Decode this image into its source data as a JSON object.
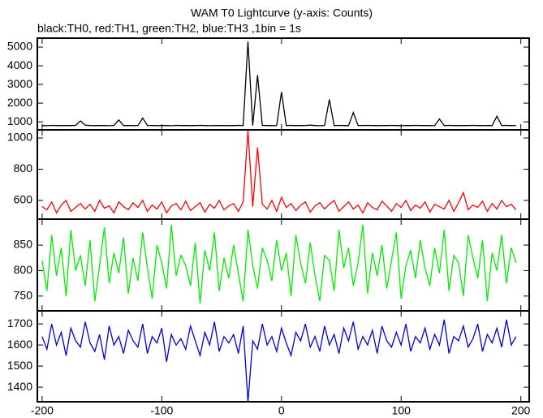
{
  "chart_data": [
    {
      "type": "line",
      "title": "WAM T0 Lightcurve (y-axis: Counts)",
      "subtitle": "black:TH0, red:TH1, green:TH2, blue:TH3 ,1bin = 1s",
      "color": "#000000",
      "xlim": [
        -204,
        207
      ],
      "ylim": [
        570,
        5480
      ],
      "yticks": [
        1000,
        2000,
        3000,
        4000,
        5000
      ],
      "x": [
        -200,
        -196,
        -192,
        -188,
        -184,
        -180,
        -176,
        -172,
        -168,
        -164,
        -160,
        -156,
        -152,
        -148,
        -144,
        -140,
        -136,
        -132,
        -128,
        -124,
        -120,
        -116,
        -112,
        -108,
        -104,
        -100,
        -96,
        -92,
        -88,
        -84,
        -80,
        -76,
        -72,
        -68,
        -64,
        -60,
        -56,
        -52,
        -48,
        -44,
        -40,
        -36,
        -32,
        -28,
        -24,
        -20,
        -16,
        -12,
        -8,
        -4,
        0,
        4,
        8,
        12,
        16,
        20,
        24,
        28,
        32,
        36,
        40,
        44,
        48,
        52,
        56,
        60,
        64,
        68,
        72,
        76,
        80,
        84,
        88,
        92,
        96,
        100,
        104,
        108,
        112,
        116,
        120,
        124,
        128,
        132,
        136,
        140,
        144,
        148,
        152,
        156,
        160,
        164,
        168,
        172,
        176,
        180,
        184,
        188,
        192,
        196
      ],
      "values": [
        800,
        790,
        810,
        800,
        795,
        805,
        800,
        810,
        1050,
        820,
        800,
        795,
        805,
        800,
        790,
        810,
        1100,
        800,
        805,
        795,
        800,
        1200,
        810,
        800,
        795,
        805,
        800,
        790,
        810,
        800,
        805,
        795,
        800,
        810,
        800,
        790,
        800,
        805,
        800,
        795,
        800,
        810,
        800,
        5300,
        800,
        3500,
        810,
        800,
        795,
        805,
        2600,
        800,
        810,
        795,
        800,
        805,
        820,
        800,
        790,
        805,
        2200,
        800,
        810,
        800,
        795,
        1500,
        800,
        805,
        810,
        800,
        795,
        805,
        800,
        810,
        800,
        790,
        805,
        800,
        810,
        800,
        800,
        795,
        805,
        1150,
        800,
        810,
        800,
        795,
        805,
        800,
        810,
        800,
        795,
        805,
        800,
        1300,
        800,
        810,
        795,
        805
      ]
    },
    {
      "type": "line",
      "color": "#ff0000",
      "xlim": [
        -204,
        207
      ],
      "ylim": [
        480,
        1052
      ],
      "yticks": [
        600,
        800,
        1000
      ],
      "x": [
        -200,
        -196,
        -192,
        -188,
        -184,
        -180,
        -176,
        -172,
        -168,
        -164,
        -160,
        -156,
        -152,
        -148,
        -144,
        -140,
        -136,
        -132,
        -128,
        -124,
        -120,
        -116,
        -112,
        -108,
        -104,
        -100,
        -96,
        -92,
        -88,
        -84,
        -80,
        -76,
        -72,
        -68,
        -64,
        -60,
        -56,
        -52,
        -48,
        -44,
        -40,
        -36,
        -32,
        -28,
        -24,
        -20,
        -16,
        -12,
        -8,
        -4,
        0,
        4,
        8,
        12,
        16,
        20,
        24,
        28,
        32,
        36,
        40,
        44,
        48,
        52,
        56,
        60,
        64,
        68,
        72,
        76,
        80,
        84,
        88,
        92,
        96,
        100,
        104,
        108,
        112,
        116,
        120,
        124,
        128,
        132,
        136,
        140,
        144,
        148,
        152,
        156,
        160,
        164,
        168,
        172,
        176,
        180,
        184,
        188,
        192,
        196
      ],
      "values": [
        560,
        540,
        590,
        520,
        570,
        600,
        530,
        555,
        580,
        545,
        575,
        530,
        600,
        550,
        565,
        520,
        590,
        560,
        540,
        585,
        555,
        600,
        530,
        570,
        545,
        590,
        520,
        565,
        580,
        540,
        595,
        535,
        560,
        585,
        525,
        575,
        550,
        600,
        540,
        565,
        580,
        530,
        590,
        1050,
        560,
        940,
        575,
        545,
        600,
        530,
        620,
        555,
        580,
        535,
        570,
        590,
        525,
        565,
        585,
        545,
        575,
        600,
        530,
        560,
        590,
        545,
        570,
        520,
        585,
        555,
        540,
        595,
        565,
        530,
        580,
        555,
        600,
        535,
        570,
        550,
        590,
        525,
        575,
        560,
        545,
        600,
        530,
        585,
        650,
        540,
        570,
        555,
        595,
        530,
        580,
        545,
        600,
        560,
        575,
        540
      ]
    },
    {
      "type": "line",
      "color": "#00ee00",
      "xlim": [
        -204,
        207
      ],
      "ylim": [
        721,
        901
      ],
      "yticks": [
        750,
        800,
        850
      ],
      "x": [
        -200,
        -196,
        -192,
        -188,
        -184,
        -180,
        -176,
        -172,
        -168,
        -164,
        -160,
        -156,
        -152,
        -148,
        -144,
        -140,
        -136,
        -132,
        -128,
        -124,
        -120,
        -116,
        -112,
        -108,
        -104,
        -100,
        -96,
        -92,
        -88,
        -84,
        -80,
        -76,
        -72,
        -68,
        -64,
        -60,
        -56,
        -52,
        -48,
        -44,
        -40,
        -36,
        -32,
        -28,
        -24,
        -20,
        -16,
        -12,
        -8,
        -4,
        0,
        4,
        8,
        12,
        16,
        20,
        24,
        28,
        32,
        36,
        40,
        44,
        48,
        52,
        56,
        60,
        64,
        68,
        72,
        76,
        80,
        84,
        88,
        92,
        96,
        100,
        104,
        108,
        112,
        116,
        120,
        124,
        128,
        132,
        136,
        140,
        144,
        148,
        152,
        156,
        160,
        164,
        168,
        172,
        176,
        180,
        184,
        188,
        192,
        196
      ],
      "values": [
        820,
        760,
        870,
        790,
        845,
        750,
        880,
        800,
        830,
        770,
        860,
        740,
        810,
        885,
        775,
        835,
        795,
        865,
        755,
        825,
        780,
        875,
        805,
        745,
        850,
        815,
        765,
        890,
        790,
        830,
        810,
        770,
        855,
        735,
        840,
        800,
        875,
        760,
        825,
        785,
        850,
        795,
        740,
        880,
        810,
        765,
        845,
        820,
        780,
        860,
        800,
        835,
        750,
        870,
        815,
        775,
        855,
        790,
        740,
        830,
        820,
        760,
        880,
        805,
        845,
        770,
        815,
        890,
        755,
        835,
        790,
        850,
        765,
        820,
        875,
        745,
        810,
        840,
        785,
        860,
        805,
        770,
        845,
        795,
        880,
        760,
        830,
        815,
        750,
        870,
        825,
        785,
        860,
        740,
        835,
        800,
        870,
        775,
        845,
        815
      ]
    },
    {
      "type": "line",
      "color": "#0000dd",
      "xlim": [
        -204,
        207
      ],
      "ylim": [
        1331,
        1762
      ],
      "yticks": [
        1400,
        1500,
        1600,
        1700
      ],
      "xticks": [
        -200,
        -100,
        0,
        100,
        200
      ],
      "x": [
        -200,
        -196,
        -192,
        -188,
        -184,
        -180,
        -176,
        -172,
        -168,
        -164,
        -160,
        -156,
        -152,
        -148,
        -144,
        -140,
        -136,
        -132,
        -128,
        -124,
        -120,
        -116,
        -112,
        -108,
        -104,
        -100,
        -96,
        -92,
        -88,
        -84,
        -80,
        -76,
        -72,
        -68,
        -64,
        -60,
        -56,
        -52,
        -48,
        -44,
        -40,
        -36,
        -32,
        -28,
        -24,
        -20,
        -16,
        -12,
        -8,
        -4,
        0,
        4,
        8,
        12,
        16,
        20,
        24,
        28,
        32,
        36,
        40,
        44,
        48,
        52,
        56,
        60,
        64,
        68,
        72,
        76,
        80,
        84,
        88,
        92,
        96,
        100,
        104,
        108,
        112,
        116,
        120,
        124,
        128,
        132,
        136,
        140,
        144,
        148,
        152,
        156,
        160,
        164,
        168,
        172,
        176,
        180,
        184,
        188,
        192,
        196
      ],
      "values": [
        1640,
        1580,
        1700,
        1600,
        1660,
        1550,
        1680,
        1620,
        1590,
        1710,
        1610,
        1570,
        1650,
        1530,
        1690,
        1600,
        1640,
        1560,
        1670,
        1620,
        1590,
        1700,
        1560,
        1640,
        1610,
        1680,
        1520,
        1650,
        1600,
        1630,
        1580,
        1690,
        1620,
        1550,
        1660,
        1600,
        1710,
        1570,
        1640,
        1610,
        1650,
        1560,
        1690,
        1330,
        1620,
        1580,
        1700,
        1600,
        1640,
        1570,
        1680,
        1610,
        1550,
        1660,
        1620,
        1700,
        1590,
        1640,
        1570,
        1690,
        1600,
        1650,
        1560,
        1680,
        1620,
        1710,
        1580,
        1640,
        1600,
        1670,
        1560,
        1690,
        1620,
        1590,
        1660,
        1600,
        1700,
        1570,
        1640,
        1610,
        1680,
        1580,
        1650,
        1600,
        1720,
        1560,
        1640,
        1620,
        1690,
        1590,
        1630,
        1700,
        1570,
        1650,
        1610,
        1680,
        1590,
        1720,
        1600,
        1640
      ]
    }
  ]
}
